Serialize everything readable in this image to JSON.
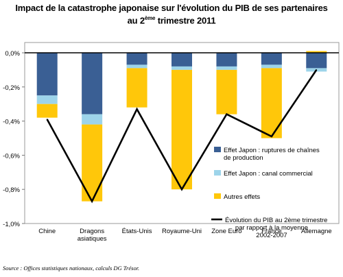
{
  "title_line1": "Impact de la catastrophe japonaise sur l'évolution du PIB de ses partenaires",
  "title_line2_prefix": "au 2",
  "title_line2_sup": "ème",
  "title_line2_suffix": " trimestre 2011",
  "source": "Source : Offices statistiques nationaux, calculs DG Trésor.",
  "chart_data": {
    "type": "bar",
    "stacked": true,
    "categories": [
      "Chine",
      "Dragons asiatiques",
      "États-Unis",
      "Royaume-Uni",
      "Zone Euro",
      "France",
      "Allemagne"
    ],
    "category_lines": [
      [
        "Chine"
      ],
      [
        "Dragons",
        "asiatiques"
      ],
      [
        "États-Unis"
      ],
      [
        "Royaume-Uni"
      ],
      [
        "Zone Euro"
      ],
      [
        "France"
      ],
      [
        "Allemagne"
      ]
    ],
    "series": [
      {
        "name": "Effet Japon : ruptures de chaînes de production",
        "name_lines": [
          "Effet Japon : ruptures de chaînes",
          "de production"
        ],
        "color": "#3a5f94",
        "values": [
          -0.25,
          -0.36,
          -0.07,
          -0.08,
          -0.08,
          -0.07,
          -0.09
        ]
      },
      {
        "name": "Effet Japon : canal commercial",
        "name_lines": [
          "Effet Japon : canal commercial"
        ],
        "color": "#9dd4ea",
        "values": [
          -0.05,
          -0.06,
          -0.02,
          -0.02,
          -0.02,
          -0.02,
          -0.02
        ]
      },
      {
        "name": "Autres effets",
        "name_lines": [
          "Autres effets"
        ],
        "color": "#ffc70a",
        "values": [
          -0.08,
          -0.45,
          -0.23,
          -0.7,
          -0.26,
          -0.41,
          0.01
        ]
      }
    ],
    "line": {
      "name": "Évolution du PIB au 2ème trimestre par rapport à la moyenne 2002-2007",
      "name_lines": [
        "Évolution du PIB au 2ème trimestre",
        "par rapport à la moyenne",
        "2002-2007"
      ],
      "color": "#000000",
      "values": [
        -0.39,
        -0.87,
        -0.33,
        -0.8,
        -0.36,
        -0.49,
        -0.1
      ]
    },
    "yticks": [
      "0,0%",
      "-0,2%",
      "-0,4%",
      "-0,6%",
      "-0,8%",
      "-1,0%"
    ],
    "ytick_values": [
      0,
      -0.2,
      -0.4,
      -0.6,
      -0.8,
      -1.0
    ],
    "ylim": [
      -1.0,
      0.1
    ],
    "grid": false,
    "legend_position": "right"
  }
}
